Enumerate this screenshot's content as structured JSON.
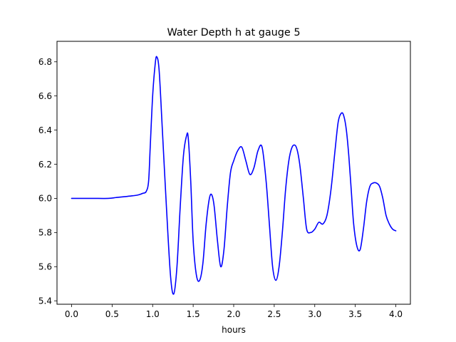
{
  "chart_data": {
    "type": "line",
    "title": "Water Depth h at gauge 5",
    "xlabel": "hours",
    "ylabel": "",
    "xlim": [
      -0.18,
      4.18
    ],
    "ylim": [
      5.38,
      6.92
    ],
    "xticks": [
      0.0,
      0.5,
      1.0,
      1.5,
      2.0,
      2.5,
      3.0,
      3.5,
      4.0
    ],
    "xtick_labels": [
      "0.0",
      "0.5",
      "1.0",
      "1.5",
      "2.0",
      "2.5",
      "3.0",
      "3.5",
      "4.0"
    ],
    "yticks": [
      5.4,
      5.6,
      5.8,
      6.0,
      6.2,
      6.4,
      6.6,
      6.8
    ],
    "ytick_labels": [
      "5.4",
      "5.6",
      "5.8",
      "6.0",
      "6.2",
      "6.4",
      "6.6",
      "6.8"
    ],
    "grid": false,
    "legend": "none",
    "series": [
      {
        "color": "#0000ff",
        "x": [
          0.0,
          0.25,
          0.45,
          0.55,
          0.65,
          0.75,
          0.82,
          0.88,
          0.92,
          0.95,
          0.97,
          1.0,
          1.03,
          1.05,
          1.08,
          1.12,
          1.17,
          1.22,
          1.26,
          1.3,
          1.34,
          1.38,
          1.42,
          1.44,
          1.47,
          1.5,
          1.54,
          1.58,
          1.62,
          1.66,
          1.7,
          1.73,
          1.76,
          1.8,
          1.84,
          1.88,
          1.92,
          1.96,
          2.0,
          2.05,
          2.1,
          2.15,
          2.2,
          2.25,
          2.3,
          2.35,
          2.4,
          2.44,
          2.48,
          2.52,
          2.56,
          2.6,
          2.64,
          2.68,
          2.72,
          2.76,
          2.79,
          2.82,
          2.86,
          2.9,
          2.95,
          3.0,
          3.05,
          3.1,
          3.15,
          3.2,
          3.25,
          3.29,
          3.33,
          3.36,
          3.39,
          3.42,
          3.45,
          3.48,
          3.52,
          3.56,
          3.6,
          3.64,
          3.68,
          3.72,
          3.76,
          3.8,
          3.84,
          3.88,
          3.92,
          3.96,
          4.0
        ],
        "y": [
          6.0,
          6.0,
          6.0,
          6.005,
          6.01,
          6.015,
          6.02,
          6.03,
          6.04,
          6.1,
          6.3,
          6.6,
          6.78,
          6.83,
          6.75,
          6.4,
          5.95,
          5.55,
          5.44,
          5.6,
          5.95,
          6.25,
          6.37,
          6.35,
          6.1,
          5.75,
          5.55,
          5.52,
          5.62,
          5.85,
          6.0,
          6.02,
          5.95,
          5.75,
          5.6,
          5.7,
          5.95,
          6.15,
          6.22,
          6.28,
          6.3,
          6.22,
          6.14,
          6.18,
          6.28,
          6.3,
          6.1,
          5.85,
          5.6,
          5.52,
          5.6,
          5.8,
          6.05,
          6.22,
          6.3,
          6.31,
          6.27,
          6.18,
          6.0,
          5.82,
          5.8,
          5.82,
          5.86,
          5.85,
          5.9,
          6.05,
          6.28,
          6.45,
          6.5,
          6.48,
          6.4,
          6.25,
          6.05,
          5.85,
          5.72,
          5.7,
          5.82,
          5.98,
          6.07,
          6.09,
          6.09,
          6.07,
          6.0,
          5.9,
          5.85,
          5.82,
          5.81
        ]
      }
    ]
  }
}
